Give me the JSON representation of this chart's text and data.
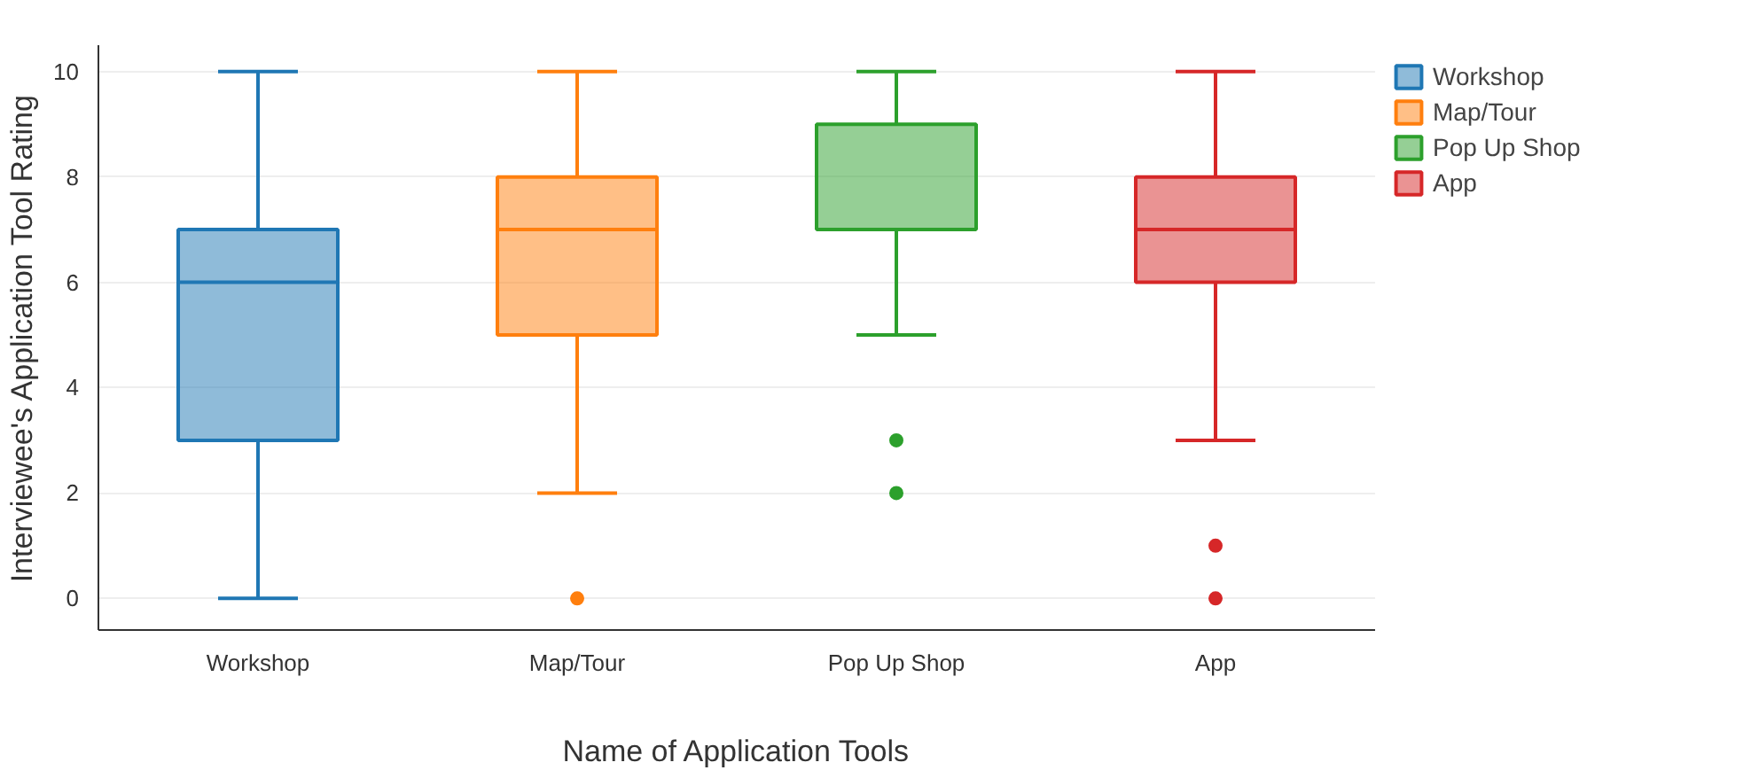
{
  "chart_data": {
    "type": "box",
    "xlabel": "Name of Application Tools",
    "ylabel": "Interviewee's Application Tool Rating",
    "categories": [
      "Workshop",
      "Map/Tour",
      "Pop Up Shop",
      "App"
    ],
    "series": [
      {
        "name": "Workshop",
        "color": "#1f77b4",
        "boxes": [
          {
            "low": 0,
            "q1": 3,
            "median": 6,
            "q3": 7,
            "high": 10
          },
          null,
          null,
          null
        ]
      },
      {
        "name": "Map/Tour",
        "color": "#ff7f0e",
        "boxes": [
          null,
          {
            "low": 2,
            "q1": 5,
            "median": 7,
            "q3": 8,
            "high": 10,
            "outliers": [
              0
            ]
          },
          null,
          null
        ]
      },
      {
        "name": "Pop Up Shop",
        "color": "#2ca02c",
        "boxes": [
          null,
          null,
          {
            "low": 5,
            "q1": 7,
            "median": 7,
            "q3": 9,
            "high": 10,
            "outliers": [
              3,
              2
            ]
          },
          null
        ]
      },
      {
        "name": "App",
        "color": "#d62728",
        "boxes": [
          null,
          null,
          null,
          {
            "low": 3,
            "q1": 6,
            "median": 7,
            "q3": 8,
            "high": 10,
            "outliers": [
              1,
              0
            ]
          }
        ]
      }
    ],
    "ylim": [
      -0.6,
      10.5
    ],
    "yticks": [
      0,
      2,
      4,
      6,
      8,
      10
    ],
    "grid": "y",
    "legend": "top right"
  }
}
